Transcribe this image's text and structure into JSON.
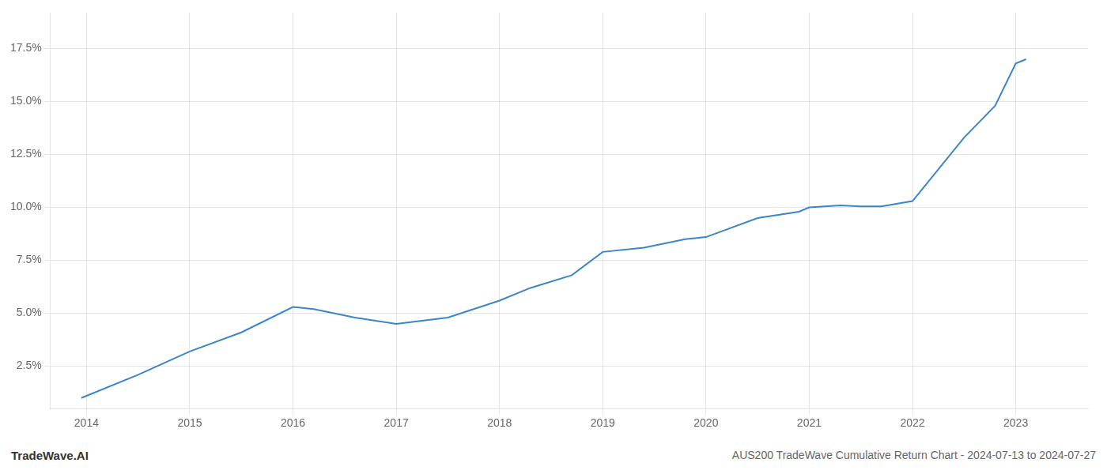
{
  "chart_data": {
    "type": "line",
    "title": "AUS200 TradeWave Cumulative Return Chart - 2024-07-13 to 2024-07-27",
    "annotations": [
      "TradeWave.AI"
    ],
    "x": [
      2013.95,
      2014.5,
      2015.0,
      2015.5,
      2016.0,
      2016.2,
      2016.6,
      2017.0,
      2017.5,
      2018.0,
      2018.3,
      2018.7,
      2019.0,
      2019.4,
      2019.8,
      2020.0,
      2020.5,
      2020.9,
      2021.0,
      2021.3,
      2021.5,
      2021.7,
      2022.0,
      2022.5,
      2022.8,
      2023.0,
      2023.1
    ],
    "values": [
      1.0,
      2.1,
      3.2,
      4.1,
      5.3,
      5.2,
      4.8,
      4.5,
      4.8,
      5.6,
      6.2,
      6.8,
      7.9,
      8.1,
      8.5,
      8.6,
      9.5,
      9.8,
      10.0,
      10.1,
      10.05,
      10.05,
      10.3,
      13.3,
      14.8,
      16.8,
      17.0
    ],
    "color": "#3a86c8",
    "xlim": [
      2013.65,
      2023.7
    ],
    "xticks": [
      2014,
      2015,
      2016,
      2017,
      2018,
      2019,
      2020,
      2021,
      2022,
      2023
    ],
    "ylim": [
      0.5,
      19.2
    ],
    "yticks": [
      {
        "value": 2.5,
        "label": "2.5%"
      },
      {
        "value": 5.0,
        "label": "5.0%"
      },
      {
        "value": 7.5,
        "label": "7.5%"
      },
      {
        "value": 10.0,
        "label": "10.0%"
      },
      {
        "value": 12.5,
        "label": "12.5%"
      },
      {
        "value": 15.0,
        "label": "15.0%"
      },
      {
        "value": 17.5,
        "label": "17.5%"
      }
    ],
    "grid": true
  }
}
